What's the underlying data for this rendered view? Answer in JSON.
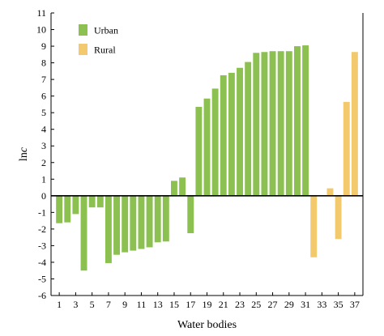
{
  "chart_data": {
    "type": "bar",
    "title": "",
    "xlabel": "Water bodies",
    "ylabel_main": "ln",
    "ylabel_italic": "c",
    "ylim": [
      -6,
      11
    ],
    "yticks": [
      -6,
      -5,
      -4,
      -3,
      -2,
      -1,
      0,
      1,
      2,
      3,
      4,
      5,
      6,
      7,
      8,
      9,
      10,
      11
    ],
    "xlim": [
      0,
      38
    ],
    "xticks": [
      1,
      3,
      5,
      7,
      9,
      11,
      13,
      15,
      17,
      19,
      21,
      23,
      25,
      27,
      29,
      31,
      33,
      35,
      37
    ],
    "grid": false,
    "legend_position": "top-left",
    "series": [
      {
        "name": "Urban",
        "color": "#8cc152",
        "x": [
          1,
          2,
          3,
          4,
          5,
          6,
          7,
          8,
          9,
          10,
          11,
          12,
          13,
          14,
          15,
          16,
          17,
          18,
          19,
          20,
          21,
          22,
          23,
          24,
          25,
          26,
          27,
          28,
          29,
          30,
          31
        ],
        "values": [
          -1.65,
          -1.6,
          -1.1,
          -4.5,
          -0.7,
          -0.7,
          -4.05,
          -3.55,
          -3.4,
          -3.3,
          -3.2,
          -3.1,
          -2.8,
          -2.75,
          0.9,
          1.1,
          -2.25,
          5.35,
          5.85,
          6.45,
          7.25,
          7.4,
          7.7,
          8.05,
          8.6,
          8.65,
          8.7,
          8.7,
          8.7,
          9.0,
          9.05
        ]
      },
      {
        "name": "Rural",
        "color": "#f2c96d",
        "x": [
          32,
          34,
          35,
          36,
          37
        ],
        "values": [
          -3.7,
          0.45,
          -2.6,
          5.65,
          8.65
        ]
      }
    ]
  }
}
